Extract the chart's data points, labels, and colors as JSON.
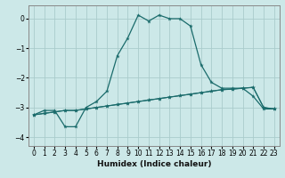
{
  "xlabel": "Humidex (Indice chaleur)",
  "background_color": "#cce8e8",
  "grid_color": "#aacccc",
  "line_color": "#1a6b6b",
  "xlim": [
    -0.5,
    23.5
  ],
  "ylim": [
    -4.3,
    0.45
  ],
  "xticks": [
    0,
    1,
    2,
    3,
    4,
    5,
    6,
    7,
    8,
    9,
    10,
    11,
    12,
    13,
    14,
    15,
    16,
    17,
    18,
    19,
    20,
    21,
    22,
    23
  ],
  "yticks": [
    0,
    -1,
    -2,
    -3,
    -4
  ],
  "line1_x": [
    0,
    1,
    2,
    3,
    4,
    5,
    6,
    7,
    8,
    9,
    10,
    11,
    12,
    13,
    14,
    15,
    16,
    17,
    18,
    19,
    20,
    21,
    22,
    23
  ],
  "line1_y": [
    -3.25,
    -3.2,
    -3.15,
    -3.1,
    -3.1,
    -3.05,
    -3.0,
    -2.95,
    -2.9,
    -2.85,
    -2.8,
    -2.75,
    -2.7,
    -2.65,
    -2.6,
    -2.55,
    -2.5,
    -2.45,
    -2.4,
    -2.38,
    -2.35,
    -2.32,
    -3.0,
    -3.05
  ],
  "line2_x": [
    0,
    1,
    2,
    3,
    4,
    5,
    6,
    7,
    8,
    9,
    10,
    11,
    12,
    13,
    14,
    15,
    16,
    17,
    18,
    19,
    20,
    21,
    22,
    23
  ],
  "line2_y": [
    -3.25,
    -3.1,
    -3.1,
    -3.65,
    -3.65,
    -3.0,
    -2.8,
    -2.45,
    -1.25,
    -0.65,
    0.12,
    -0.08,
    0.12,
    0.0,
    0.0,
    -0.25,
    -1.55,
    -2.15,
    -2.35,
    -2.35,
    -2.35,
    -2.62,
    -3.05,
    -3.05
  ],
  "line3_x": [
    0,
    1,
    2,
    3,
    4,
    5,
    6,
    7,
    8,
    9,
    10,
    11,
    12,
    13,
    14,
    15,
    16,
    17,
    18,
    19,
    20,
    21,
    22,
    23
  ],
  "line3_y": [
    -3.25,
    -3.2,
    -3.15,
    -3.1,
    -3.1,
    -3.05,
    -3.0,
    -2.95,
    -2.9,
    -2.85,
    -2.8,
    -2.75,
    -2.7,
    -2.65,
    -2.6,
    -2.55,
    -2.5,
    -2.45,
    -2.4,
    -2.38,
    -2.35,
    -2.32,
    -3.0,
    -3.05
  ]
}
